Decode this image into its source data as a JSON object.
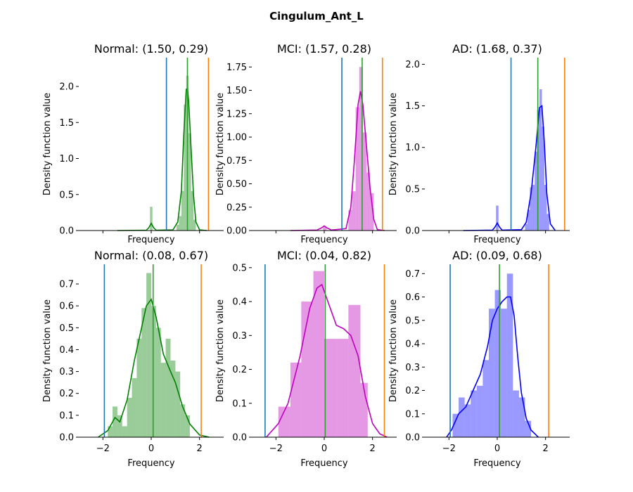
{
  "figure": {
    "title": "Cingulum_Ant_L"
  },
  "chart_data": [
    {
      "type": "histogram",
      "title": "Normal: (1.50, 0.29)",
      "xlabel": "Frequency",
      "ylabel": "Density function value",
      "xlim": [
        -3.0,
        3.0
      ],
      "ylim": [
        0,
        2.4
      ],
      "yticks": [
        "0.0",
        "0.5",
        "1.0",
        "1.5",
        "2.0"
      ],
      "xticks": [],
      "color": "#008000",
      "bins": [
        {
          "x0": -0.05,
          "x1": 0.05,
          "h": 0.33
        },
        {
          "x0": 1.05,
          "x1": 1.15,
          "h": 0.08
        },
        {
          "x0": 1.15,
          "x1": 1.25,
          "h": 0.2
        },
        {
          "x0": 1.25,
          "x1": 1.35,
          "h": 0.55
        },
        {
          "x0": 1.35,
          "x1": 1.45,
          "h": 1.75
        },
        {
          "x0": 1.45,
          "x1": 1.55,
          "h": 2.15
        },
        {
          "x0": 1.55,
          "x1": 1.65,
          "h": 1.35
        },
        {
          "x0": 1.65,
          "x1": 1.75,
          "h": 0.55
        },
        {
          "x0": 1.75,
          "x1": 1.85,
          "h": 0.15
        }
      ],
      "kde": [
        [
          -1.4,
          0
        ],
        [
          -0.2,
          0.005
        ],
        [
          -0.1,
          0.04
        ],
        [
          0.0,
          0.1
        ],
        [
          0.1,
          0.04
        ],
        [
          0.2,
          0.005
        ],
        [
          0.9,
          0.01
        ],
        [
          1.1,
          0.12
        ],
        [
          1.25,
          0.55
        ],
        [
          1.35,
          1.35
        ],
        [
          1.45,
          1.96
        ],
        [
          1.5,
          1.97
        ],
        [
          1.55,
          1.8
        ],
        [
          1.65,
          1.15
        ],
        [
          1.75,
          0.5
        ],
        [
          1.85,
          0.12
        ],
        [
          2.0,
          0.01
        ],
        [
          2.3,
          0
        ]
      ],
      "vlines": [
        {
          "x": 0.63,
          "color": "#1f77b4"
        },
        {
          "x": 1.5,
          "color": "#2ca02c"
        },
        {
          "x": 2.37,
          "color": "#ff7f0e"
        }
      ]
    },
    {
      "type": "histogram",
      "title": "MCI: (1.57, 0.28)",
      "xlabel": "Frequency",
      "ylabel": "Density function value",
      "xlim": [
        -3.0,
        3.0
      ],
      "ylim": [
        0,
        1.85
      ],
      "yticks": [
        "0.00",
        "0.25",
        "0.50",
        "0.75",
        "1.00",
        "1.25",
        "1.50",
        "1.75"
      ],
      "xticks": [],
      "color": "#bf00bf",
      "bins": [
        {
          "x0": -0.05,
          "x1": 0.1,
          "h": 0.04
        },
        {
          "x0": 1.0,
          "x1": 1.15,
          "h": 0.22
        },
        {
          "x0": 1.15,
          "x1": 1.3,
          "h": 0.42
        },
        {
          "x0": 1.3,
          "x1": 1.45,
          "h": 1.32
        },
        {
          "x0": 1.45,
          "x1": 1.6,
          "h": 1.75
        },
        {
          "x0": 1.6,
          "x1": 1.75,
          "h": 1.05
        },
        {
          "x0": 1.75,
          "x1": 1.9,
          "h": 0.62
        },
        {
          "x0": 1.9,
          "x1": 2.05,
          "h": 0.4
        }
      ],
      "kde": [
        [
          -1.4,
          0
        ],
        [
          -0.3,
          0.005
        ],
        [
          -0.1,
          0.03
        ],
        [
          0.0,
          0.05
        ],
        [
          0.1,
          0.03
        ],
        [
          0.3,
          0.005
        ],
        [
          0.9,
          0.02
        ],
        [
          1.1,
          0.25
        ],
        [
          1.25,
          0.75
        ],
        [
          1.4,
          1.35
        ],
        [
          1.5,
          1.49
        ],
        [
          1.6,
          1.35
        ],
        [
          1.75,
          0.9
        ],
        [
          1.9,
          0.45
        ],
        [
          2.05,
          0.12
        ],
        [
          2.2,
          0.01
        ],
        [
          2.5,
          0
        ]
      ],
      "vlines": [
        {
          "x": 0.73,
          "color": "#1f77b4"
        },
        {
          "x": 1.57,
          "color": "#2ca02c"
        },
        {
          "x": 2.41,
          "color": "#ff7f0e"
        }
      ]
    },
    {
      "type": "histogram",
      "title": "AD: (1.68, 0.37)",
      "xlabel": "Frequency",
      "ylabel": "Density function value",
      "xlim": [
        -3.0,
        3.0
      ],
      "ylim": [
        0,
        2.08
      ],
      "yticks": [
        "0.0",
        "0.5",
        "1.0",
        "1.5",
        "2.0"
      ],
      "xticks": [],
      "color": "#0000ff",
      "bins": [
        {
          "x0": -0.05,
          "x1": 0.05,
          "h": 0.3
        },
        {
          "x0": 1.15,
          "x1": 1.25,
          "h": 0.08
        },
        {
          "x0": 1.25,
          "x1": 1.35,
          "h": 0.25
        },
        {
          "x0": 1.35,
          "x1": 1.45,
          "h": 0.52
        },
        {
          "x0": 1.45,
          "x1": 1.55,
          "h": 0.55
        },
        {
          "x0": 1.55,
          "x1": 1.65,
          "h": 0.95
        },
        {
          "x0": 1.65,
          "x1": 1.75,
          "h": 1.45
        },
        {
          "x0": 1.75,
          "x1": 1.85,
          "h": 1.7
        },
        {
          "x0": 1.85,
          "x1": 1.95,
          "h": 1.25
        },
        {
          "x0": 1.95,
          "x1": 2.05,
          "h": 0.55
        },
        {
          "x0": 2.05,
          "x1": 2.15,
          "h": 0.2
        }
      ],
      "kde": [
        [
          -1.4,
          0
        ],
        [
          -0.2,
          0.005
        ],
        [
          -0.1,
          0.04
        ],
        [
          0.0,
          0.09
        ],
        [
          0.1,
          0.04
        ],
        [
          0.2,
          0.005
        ],
        [
          1.0,
          0.01
        ],
        [
          1.2,
          0.1
        ],
        [
          1.4,
          0.45
        ],
        [
          1.6,
          1.0
        ],
        [
          1.75,
          1.48
        ],
        [
          1.85,
          1.5
        ],
        [
          1.95,
          1.05
        ],
        [
          2.05,
          0.45
        ],
        [
          2.2,
          0.08
        ],
        [
          2.4,
          0
        ]
      ],
      "vlines": [
        {
          "x": 0.57,
          "color": "#1f77b4"
        },
        {
          "x": 1.68,
          "color": "#2ca02c"
        },
        {
          "x": 2.79,
          "color": "#ff7f0e"
        }
      ]
    },
    {
      "type": "histogram",
      "title": "Normal: (0.08, 0.67)",
      "xlabel": "Frequency",
      "ylabel": "Density function value",
      "xlim": [
        -3.0,
        3.0
      ],
      "ylim": [
        0,
        0.79
      ],
      "yticks": [
        "0.0",
        "0.1",
        "0.2",
        "0.3",
        "0.4",
        "0.5",
        "0.6",
        "0.7"
      ],
      "xticks": [
        "−2",
        "0",
        "2"
      ],
      "xtick_values": [
        -2,
        0,
        2
      ],
      "color": "#008000",
      "bins": [
        {
          "x0": -1.8,
          "x1": -1.6,
          "h": 0.05
        },
        {
          "x0": -1.6,
          "x1": -1.4,
          "h": 0.14
        },
        {
          "x0": -1.4,
          "x1": -1.2,
          "h": 0.1
        },
        {
          "x0": -1.2,
          "x1": -1.0,
          "h": 0.05
        },
        {
          "x0": -1.0,
          "x1": -0.8,
          "h": 0.18
        },
        {
          "x0": -0.8,
          "x1": -0.6,
          "h": 0.27
        },
        {
          "x0": -0.6,
          "x1": -0.4,
          "h": 0.45
        },
        {
          "x0": -0.4,
          "x1": -0.2,
          "h": 0.59
        },
        {
          "x0": -0.2,
          "x1": 0.0,
          "h": 0.75
        },
        {
          "x0": 0.0,
          "x1": 0.2,
          "h": 0.6
        },
        {
          "x0": 0.2,
          "x1": 0.4,
          "h": 0.5
        },
        {
          "x0": 0.4,
          "x1": 0.6,
          "h": 0.34
        },
        {
          "x0": 0.6,
          "x1": 0.8,
          "h": 0.45
        },
        {
          "x0": 0.8,
          "x1": 1.0,
          "h": 0.35
        },
        {
          "x0": 1.0,
          "x1": 1.2,
          "h": 0.3
        },
        {
          "x0": 1.2,
          "x1": 1.4,
          "h": 0.15
        },
        {
          "x0": 1.4,
          "x1": 1.6,
          "h": 0.1
        }
      ],
      "kde": [
        [
          -2.2,
          0.0
        ],
        [
          -1.8,
          0.03
        ],
        [
          -1.5,
          0.09
        ],
        [
          -1.3,
          0.07
        ],
        [
          -1.0,
          0.17
        ],
        [
          -0.7,
          0.35
        ],
        [
          -0.4,
          0.5
        ],
        [
          -0.2,
          0.6
        ],
        [
          0.0,
          0.63
        ],
        [
          0.2,
          0.55
        ],
        [
          0.5,
          0.38
        ],
        [
          0.8,
          0.3
        ],
        [
          1.0,
          0.25
        ],
        [
          1.3,
          0.14
        ],
        [
          1.6,
          0.06
        ],
        [
          2.0,
          0.01
        ],
        [
          2.4,
          0.0
        ]
      ],
      "vlines": [
        {
          "x": -1.94,
          "color": "#1f77b4"
        },
        {
          "x": 0.08,
          "color": "#2ca02c"
        },
        {
          "x": 2.07,
          "color": "#ff7f0e"
        }
      ]
    },
    {
      "type": "histogram",
      "title": "MCI: (0.04, 0.82)",
      "xlabel": "Frequency",
      "ylabel": "Density function value",
      "xlim": [
        -3.0,
        3.0
      ],
      "ylim": [
        0,
        0.51
      ],
      "yticks": [
        "0.0",
        "0.1",
        "0.2",
        "0.3",
        "0.4",
        "0.5"
      ],
      "xticks": [
        "−2",
        "0",
        "2"
      ],
      "xtick_values": [
        -2,
        0,
        2
      ],
      "color": "#bf00bf",
      "bins": [
        {
          "x0": -1.9,
          "x1": -1.4,
          "h": 0.09
        },
        {
          "x0": -1.4,
          "x1": -0.95,
          "h": 0.22
        },
        {
          "x0": -0.95,
          "x1": -0.45,
          "h": 0.4
        },
        {
          "x0": -0.45,
          "x1": 0.0,
          "h": 0.49
        },
        {
          "x0": 0.0,
          "x1": 0.5,
          "h": 0.29
        },
        {
          "x0": 0.5,
          "x1": 1.0,
          "h": 0.29
        },
        {
          "x0": 1.0,
          "x1": 1.5,
          "h": 0.39
        },
        {
          "x0": 1.5,
          "x1": 1.8,
          "h": 0.16
        }
      ],
      "kde": [
        [
          -2.4,
          0.0
        ],
        [
          -1.9,
          0.04
        ],
        [
          -1.5,
          0.1
        ],
        [
          -1.0,
          0.24
        ],
        [
          -0.6,
          0.38
        ],
        [
          -0.3,
          0.44
        ],
        [
          -0.1,
          0.45
        ],
        [
          0.2,
          0.39
        ],
        [
          0.5,
          0.33
        ],
        [
          0.8,
          0.32
        ],
        [
          1.1,
          0.3
        ],
        [
          1.4,
          0.24
        ],
        [
          1.7,
          0.12
        ],
        [
          2.0,
          0.04
        ],
        [
          2.3,
          0.01
        ],
        [
          2.6,
          0.0
        ]
      ],
      "vlines": [
        {
          "x": -2.45,
          "color": "#1f77b4"
        },
        {
          "x": 0.04,
          "color": "#2ca02c"
        },
        {
          "x": 2.49,
          "color": "#ff7f0e"
        }
      ]
    },
    {
      "type": "histogram",
      "title": "AD: (0.09, 0.68)",
      "xlabel": "Frequency",
      "ylabel": "Density function value",
      "xlim": [
        -3.0,
        3.0
      ],
      "ylim": [
        0,
        0.74
      ],
      "yticks": [
        "0.0",
        "0.1",
        "0.2",
        "0.3",
        "0.4",
        "0.5",
        "0.6",
        "0.7"
      ],
      "xticks": [
        "−2",
        "0",
        "2"
      ],
      "xtick_values": [
        -2,
        0,
        2
      ],
      "color": "#0000ff",
      "bins": [
        {
          "x0": -1.85,
          "x1": -1.6,
          "h": 0.1
        },
        {
          "x0": -1.6,
          "x1": -1.35,
          "h": 0.17
        },
        {
          "x0": -1.35,
          "x1": -1.1,
          "h": 0.14
        },
        {
          "x0": -1.1,
          "x1": -0.85,
          "h": 0.2
        },
        {
          "x0": -0.85,
          "x1": -0.6,
          "h": 0.22
        },
        {
          "x0": -0.6,
          "x1": -0.35,
          "h": 0.33
        },
        {
          "x0": -0.35,
          "x1": -0.1,
          "h": 0.55
        },
        {
          "x0": -0.1,
          "x1": 0.15,
          "h": 0.63
        },
        {
          "x0": 0.15,
          "x1": 0.4,
          "h": 0.55
        },
        {
          "x0": 0.4,
          "x1": 0.65,
          "h": 0.7
        },
        {
          "x0": 0.65,
          "x1": 0.9,
          "h": 0.2
        },
        {
          "x0": 0.9,
          "x1": 1.15,
          "h": 0.17
        },
        {
          "x0": 1.15,
          "x1": 1.4,
          "h": 0.07
        }
      ],
      "kde": [
        [
          -2.1,
          0.0
        ],
        [
          -1.9,
          0.03
        ],
        [
          -1.6,
          0.1
        ],
        [
          -1.3,
          0.13
        ],
        [
          -1.0,
          0.2
        ],
        [
          -0.7,
          0.27
        ],
        [
          -0.4,
          0.39
        ],
        [
          -0.2,
          0.5
        ],
        [
          0.0,
          0.55
        ],
        [
          0.2,
          0.58
        ],
        [
          0.4,
          0.6
        ],
        [
          0.55,
          0.6
        ],
        [
          0.7,
          0.52
        ],
        [
          0.85,
          0.34
        ],
        [
          1.0,
          0.19
        ],
        [
          1.2,
          0.08
        ],
        [
          1.4,
          0.03
        ],
        [
          1.7,
          0.0
        ]
      ],
      "vlines": [
        {
          "x": -1.95,
          "color": "#1f77b4"
        },
        {
          "x": 0.09,
          "color": "#2ca02c"
        },
        {
          "x": 2.13,
          "color": "#ff7f0e"
        }
      ]
    }
  ]
}
